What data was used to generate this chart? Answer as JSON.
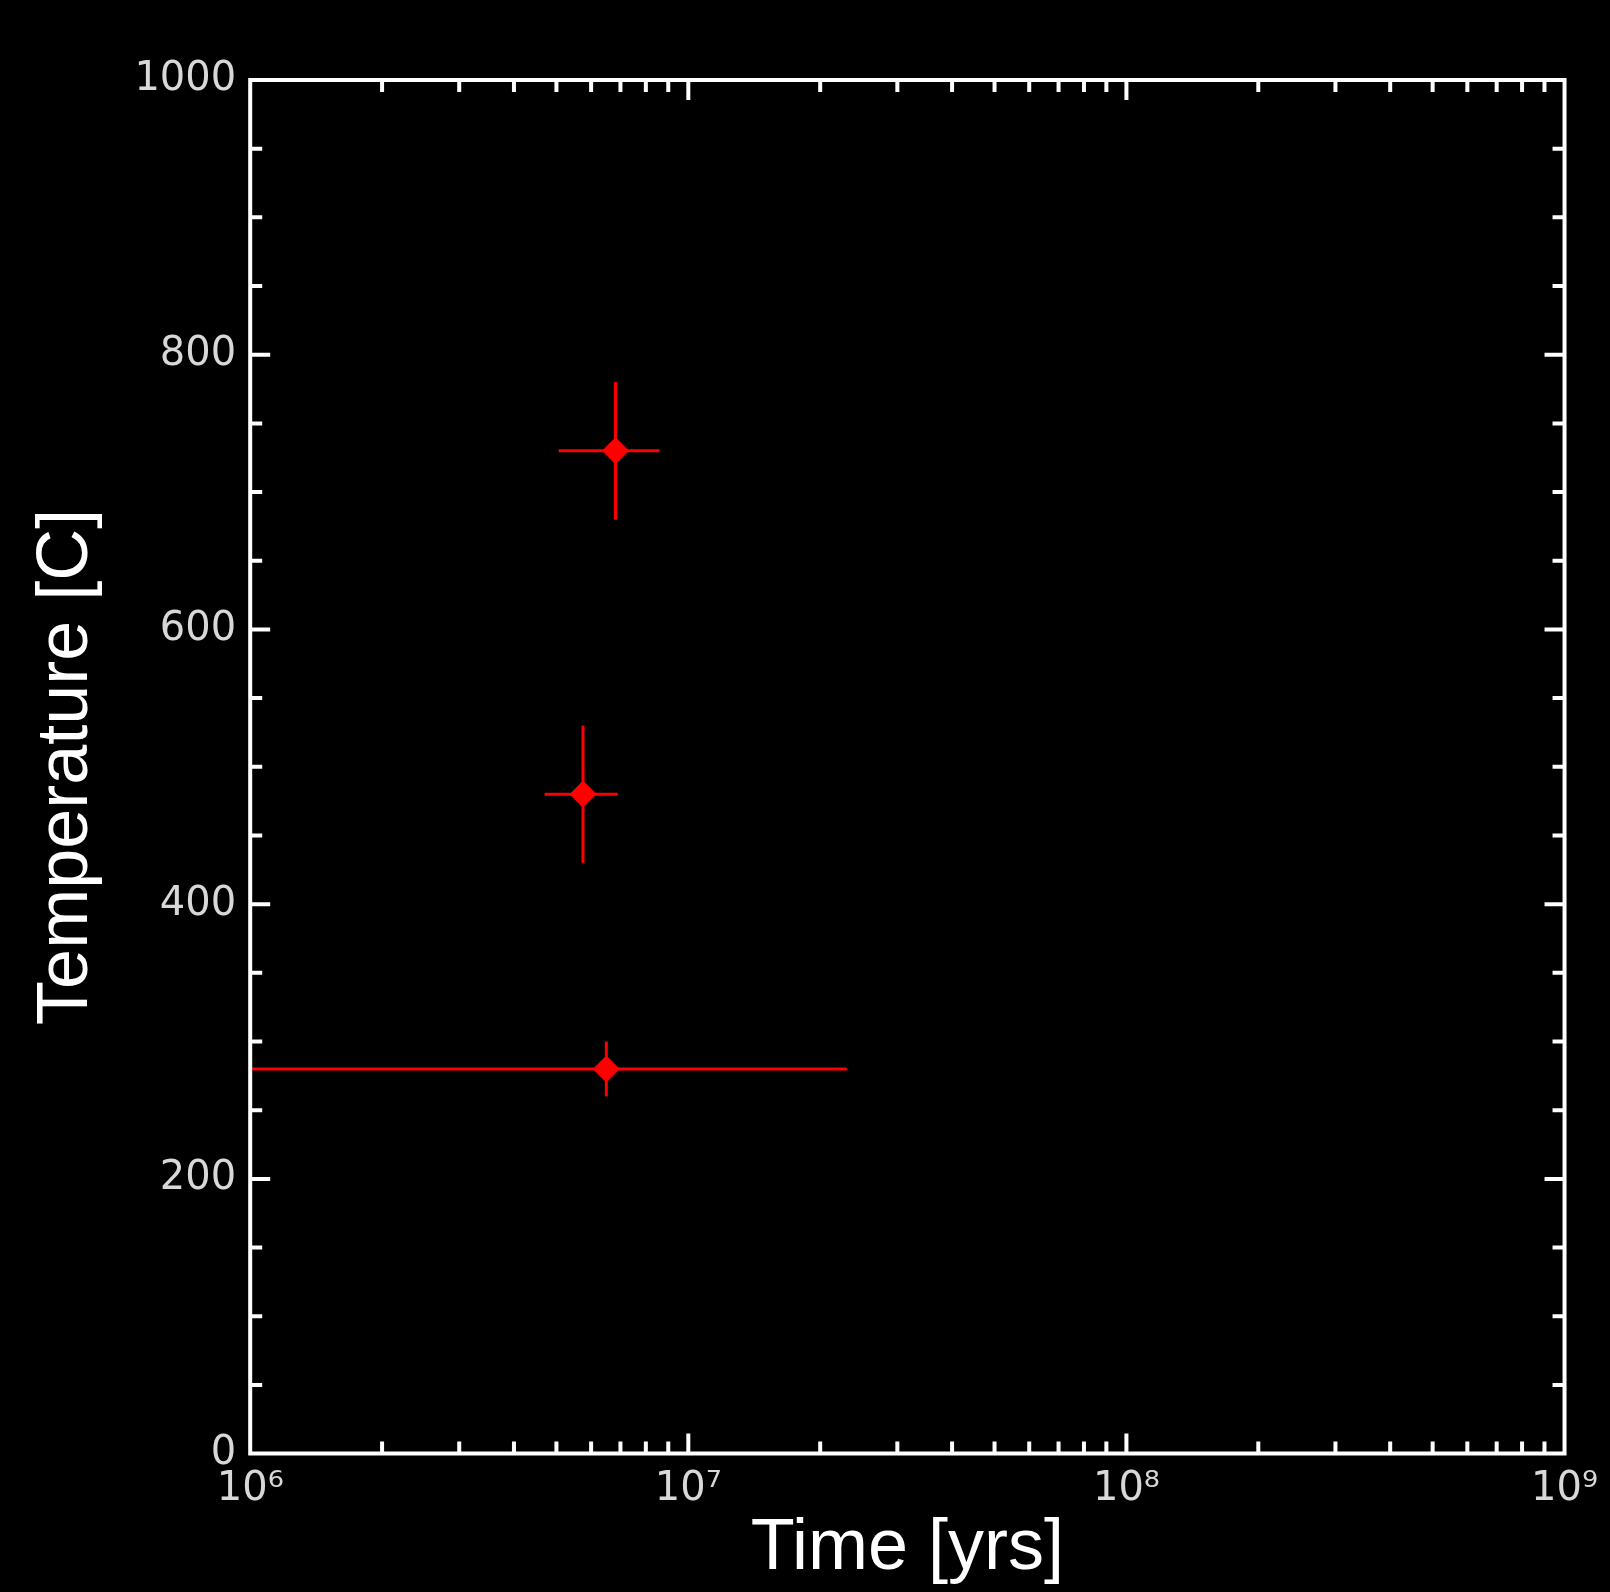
{
  "chart_data": {
    "type": "scatter",
    "xlabel": "Time [yrs]",
    "ylabel": "Temperature [C]",
    "x": [
      6820000,
      5750000,
      6500000
    ],
    "values": [
      730,
      480,
      280
    ],
    "errors": [
      50,
      50,
      20
    ],
    "xerrors": [
      [
        5060000,
        8600000
      ],
      [
        4700000,
        6900000
      ],
      [
        1000000,
        23000000
      ]
    ],
    "color": "#ff0000",
    "marker": "diamond",
    "log": "x",
    "grid": false,
    "xlim": [
      1000000,
      1000000000
    ],
    "ylim": [
      0,
      1000
    ],
    "xticks": [
      {
        "value": 1000000,
        "label": "10⁶"
      },
      {
        "value": 2000000,
        "label": null
      },
      {
        "value": 3000000,
        "label": null
      },
      {
        "value": 4000000,
        "label": null
      },
      {
        "value": 5000000,
        "label": null
      },
      {
        "value": 6000000,
        "label": null
      },
      {
        "value": 7000000,
        "label": null
      },
      {
        "value": 8000000,
        "label": null
      },
      {
        "value": 9000000,
        "label": null
      },
      {
        "value": 10000000,
        "label": "10⁷"
      },
      {
        "value": 20000000,
        "label": null
      },
      {
        "value": 30000000,
        "label": null
      },
      {
        "value": 40000000,
        "label": null
      },
      {
        "value": 50000000,
        "label": null
      },
      {
        "value": 60000000,
        "label": null
      },
      {
        "value": 70000000,
        "label": null
      },
      {
        "value": 80000000,
        "label": null
      },
      {
        "value": 90000000,
        "label": null
      },
      {
        "value": 100000000,
        "label": "10⁸"
      },
      {
        "value": 200000000,
        "label": null
      },
      {
        "value": 300000000,
        "label": null
      },
      {
        "value": 400000000,
        "label": null
      },
      {
        "value": 500000000,
        "label": null
      },
      {
        "value": 600000000,
        "label": null
      },
      {
        "value": 700000000,
        "label": null
      },
      {
        "value": 800000000,
        "label": null
      },
      {
        "value": 900000000,
        "label": null
      },
      {
        "value": 1000000000,
        "label": "10⁹"
      }
    ],
    "yticks": [
      0,
      {
        "value": 50,
        "label": null
      },
      {
        "value": 100,
        "label": null
      },
      {
        "value": 150,
        "label": null
      },
      200,
      {
        "value": 250,
        "label": null
      },
      {
        "value": 300,
        "label": null
      },
      {
        "value": 350,
        "label": null
      },
      400,
      {
        "value": 450,
        "label": null
      },
      {
        "value": 500,
        "label": null
      },
      {
        "value": 550,
        "label": null
      },
      600,
      {
        "value": 650,
        "label": null
      },
      {
        "value": 700,
        "label": null
      },
      {
        "value": 750,
        "label": null
      },
      800,
      {
        "value": 850,
        "label": null
      },
      {
        "value": 900,
        "label": null
      },
      {
        "value": 950,
        "label": null
      },
      1000
    ]
  }
}
